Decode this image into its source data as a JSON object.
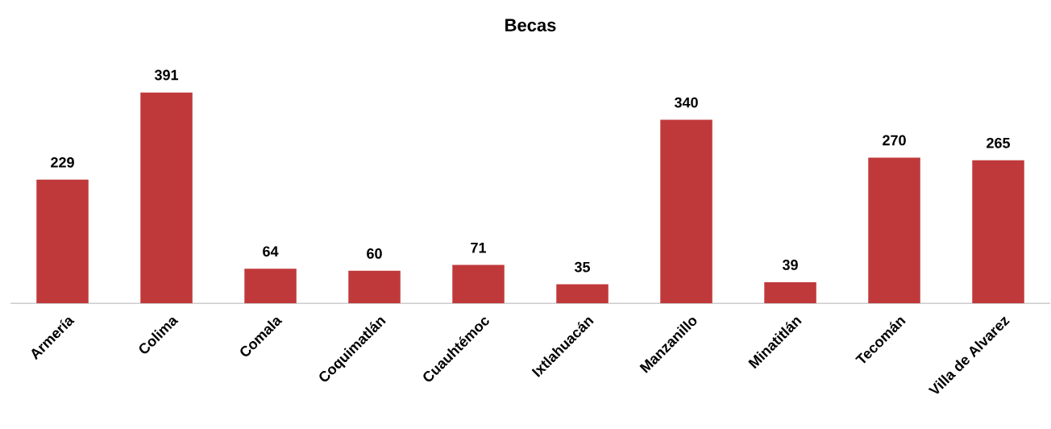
{
  "chart_data": {
    "type": "bar",
    "title": "Becas",
    "categories": [
      "Armería",
      "Colima",
      "Comala",
      "Coquimatlán",
      "Cuauhtémoc",
      "Ixtlahuacán",
      "Manzanillo",
      "Minatitlán",
      "Tecomán",
      "Villa de Alvarez"
    ],
    "values": [
      229,
      391,
      64,
      60,
      71,
      35,
      340,
      39,
      270,
      265
    ],
    "color": "#c0393a",
    "data_labels": true
  }
}
